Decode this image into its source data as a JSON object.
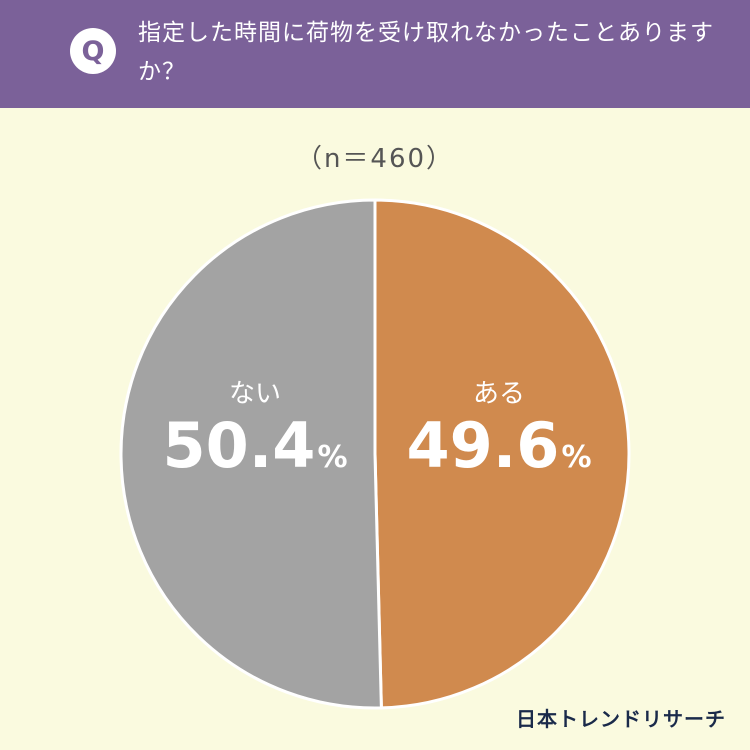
{
  "header": {
    "badge": "Q",
    "question": "指定した時間に荷物を受け取れなかったことありますか？"
  },
  "sample_size": "（n＝460）",
  "chart_data": {
    "type": "pie",
    "categories": [
      "ある",
      "ない"
    ],
    "values": [
      49.6,
      50.4
    ],
    "labels": [
      "49.6",
      "50.4"
    ],
    "unit": "%",
    "colors": [
      "#d08a4e",
      "#a3a3a3"
    ],
    "start_angle": 0,
    "direction": "clockwise"
  },
  "brand": "日本トレンドリサーチ"
}
